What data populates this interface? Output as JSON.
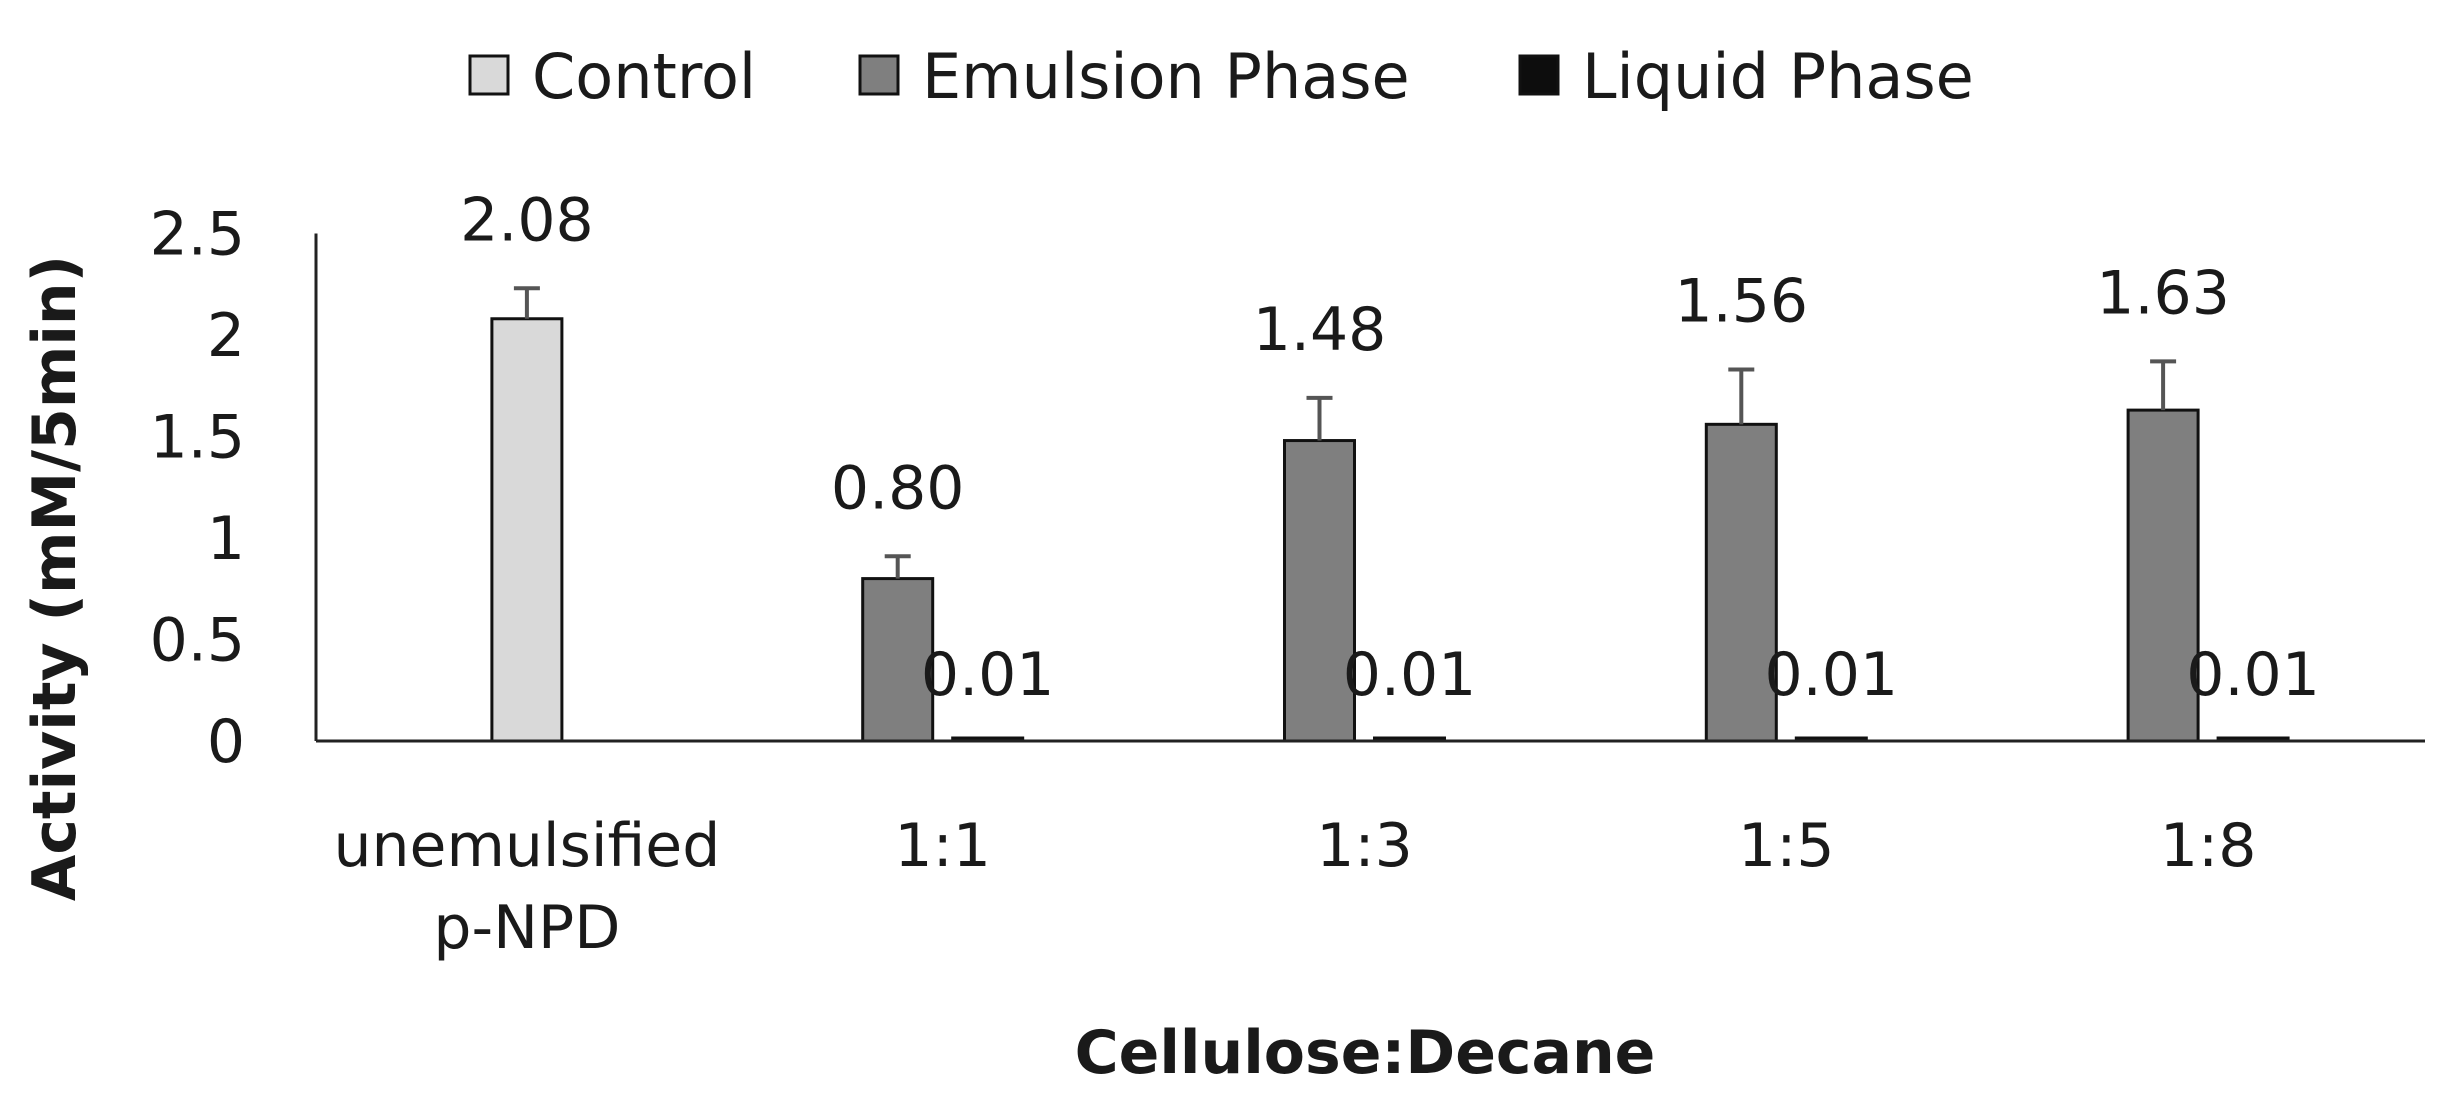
{
  "chart_data": {
    "type": "bar",
    "title": "",
    "xlabel": "Cellulose:Decane",
    "ylabel": "Activity (mM/5min)",
    "ylim": [
      0,
      2.5
    ],
    "yticks": [
      "0",
      "0.5",
      "1",
      "1.5",
      "2",
      "2.5"
    ],
    "categories": [
      [
        "unemulsified",
        "p-NPD"
      ],
      [
        "1:1"
      ],
      [
        "1:3"
      ],
      [
        "1:5"
      ],
      [
        "1:8"
      ]
    ],
    "legend_position": "top",
    "grid": false,
    "series": [
      {
        "name": "Control",
        "color": "#d9d9d9",
        "values": [
          2.08,
          null,
          null,
          null,
          null
        ],
        "labels": [
          "2.08",
          "",
          "",
          "",
          ""
        ],
        "errors": [
          0.15,
          null,
          null,
          null,
          null
        ]
      },
      {
        "name": "Emulsion Phase",
        "color": "#7f7f7f",
        "values": [
          null,
          0.8,
          1.48,
          1.56,
          1.63
        ],
        "labels": [
          "",
          "0.80",
          "1.48",
          "1.56",
          "1.63"
        ],
        "errors": [
          null,
          0.11,
          0.21,
          0.27,
          0.24
        ]
      },
      {
        "name": "Liquid Phase",
        "color": "#0d0d0d",
        "values": [
          null,
          0.01,
          0.01,
          0.01,
          0.01
        ],
        "labels": [
          "",
          "0.01",
          "0.01",
          "0.01",
          "0.01"
        ],
        "errors": [
          null,
          null,
          null,
          null,
          null
        ]
      }
    ]
  }
}
